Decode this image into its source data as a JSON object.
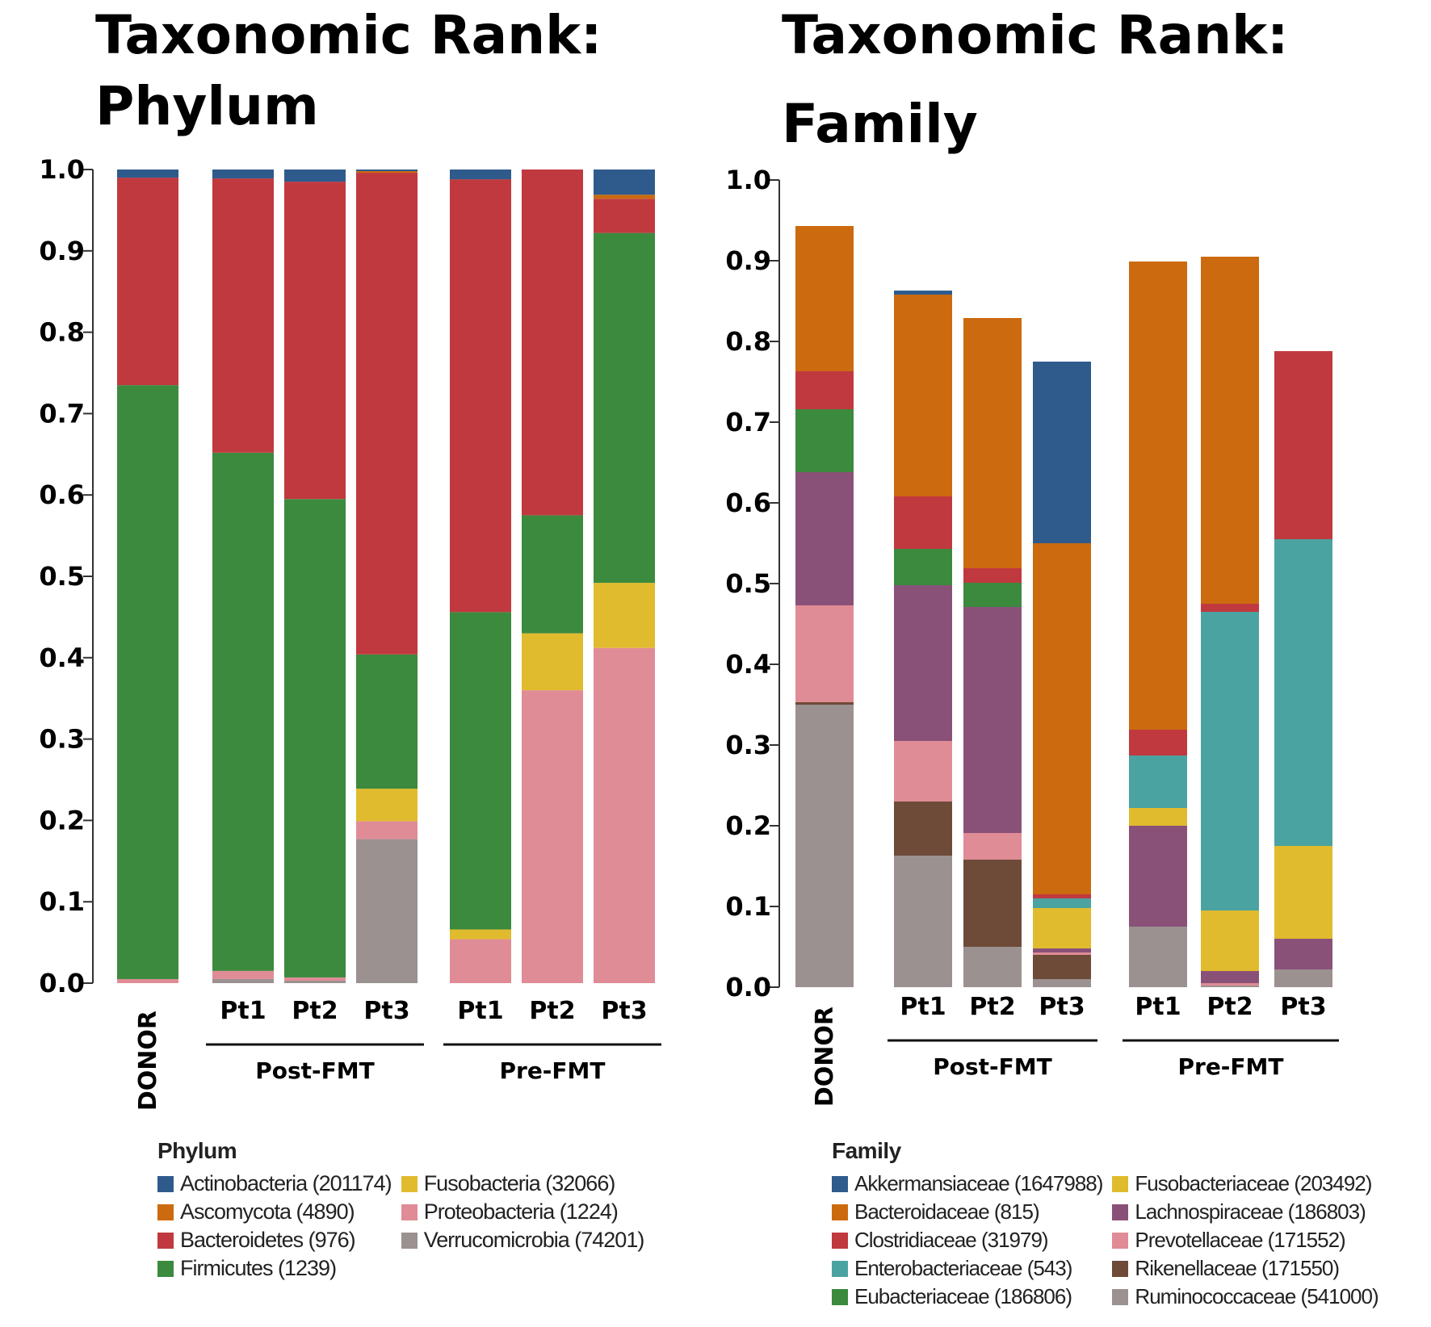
{
  "titles": {
    "left_line1": "Taxonomic Rank:",
    "left_line2": "Phylum",
    "right_line1": "Taxonomic Rank:",
    "right_line2": "Family"
  },
  "colors": {
    "Actinobacteria": "#2e5b8c",
    "Ascomycota": "#cc6a10",
    "Bacteroidetes": "#c0393f",
    "Firmicutes": "#3b8a3e",
    "Fusobacteria": "#e0bb2e",
    "Proteobacteria": "#e08c96",
    "Verrucomicrobia": "#9b9191",
    "Akkermansiaceae": "#2e5b8c",
    "Bacteroidaceae": "#cc6a10",
    "Clostridiaceae": "#c0393f",
    "Enterobacteriaceae": "#4ba3a1",
    "Eubacteriaceae": "#3b8a3e",
    "Fusobacteriaceae": "#e0bb2e",
    "Lachnospiraceae": "#8a5178",
    "Prevotellaceae": "#e08c96",
    "Rikenellaceae": "#6e4a38",
    "Ruminococcaceae": "#9b9191"
  },
  "chart_data": [
    {
      "type": "bar",
      "stacked": true,
      "ylim": [
        0,
        1.0
      ],
      "yticks": [
        "0.0",
        "0.1",
        "0.2",
        "0.3",
        "0.4",
        "0.5",
        "0.6",
        "0.7",
        "0.8",
        "0.9",
        "1.0"
      ],
      "categories": [
        "DONOR",
        "Pt1",
        "Pt2",
        "Pt3",
        "Pt1",
        "Pt2",
        "Pt3"
      ],
      "groups": [
        {
          "label": "Post-FMT",
          "members": [
            1,
            2,
            3
          ]
        },
        {
          "label": "Pre-FMT",
          "members": [
            4,
            5,
            6
          ]
        }
      ],
      "legend_title": "Phylum",
      "legend_columns": [
        [
          "Actinobacteria (201174)",
          "Ascomycota (4890)",
          "Bacteroidetes (976)",
          "Firmicutes (1239)"
        ],
        [
          "Fusobacteria (32066)",
          "Proteobacteria (1224)",
          "Verrucomicrobia (74201)"
        ]
      ],
      "series": [
        {
          "name": "Verrucomicrobia",
          "values": [
            0.0,
            0.005,
            0.003,
            0.177,
            0.0,
            0.0,
            0.0
          ]
        },
        {
          "name": "Proteobacteria",
          "values": [
            0.005,
            0.01,
            0.004,
            0.022,
            0.054,
            0.36,
            0.412
          ]
        },
        {
          "name": "Fusobacteria",
          "values": [
            0.0,
            0.0,
            0.0,
            0.04,
            0.012,
            0.07,
            0.08
          ]
        },
        {
          "name": "Firmicutes",
          "values": [
            0.73,
            0.637,
            0.588,
            0.165,
            0.39,
            0.145,
            0.43
          ]
        },
        {
          "name": "Bacteroidetes",
          "values": [
            0.255,
            0.337,
            0.39,
            0.592,
            0.532,
            0.425,
            0.042
          ]
        },
        {
          "name": "Ascomycota",
          "values": [
            0.0,
            0.0,
            0.0,
            0.002,
            0.0,
            0.0,
            0.005
          ]
        },
        {
          "name": "Actinobacteria",
          "values": [
            0.01,
            0.011,
            0.015,
            0.002,
            0.012,
            0.0,
            0.031
          ]
        }
      ]
    },
    {
      "type": "bar",
      "stacked": true,
      "ylim": [
        0,
        1.0
      ],
      "yticks": [
        "0.0",
        "0.1",
        "0.2",
        "0.3",
        "0.4",
        "0.5",
        "0.6",
        "0.7",
        "0.8",
        "0.9",
        "1.0"
      ],
      "categories": [
        "DONOR",
        "Pt1",
        "Pt2",
        "Pt3",
        "Pt1",
        "Pt2",
        "Pt3"
      ],
      "groups": [
        {
          "label": "Post-FMT",
          "members": [
            1,
            2,
            3
          ]
        },
        {
          "label": "Pre-FMT",
          "members": [
            4,
            5,
            6
          ]
        }
      ],
      "legend_title": "Family",
      "legend_columns": [
        [
          "Akkermansiaceae (1647988)",
          "Bacteroidaceae (815)",
          "Clostridiaceae (31979)",
          "Enterobacteriaceae (543)",
          "Eubacteriaceae (186806)"
        ],
        [
          "Fusobacteriaceae (203492)",
          "Lachnospiraceae (186803)",
          "Prevotellaceae (171552)",
          "Rikenellaceae (171550)",
          "Ruminococcaceae (541000)"
        ]
      ],
      "series": [
        {
          "name": "Ruminococcaceae",
          "values": [
            0.35,
            0.163,
            0.05,
            0.01,
            0.075,
            0.002,
            0.022
          ]
        },
        {
          "name": "Rikenellaceae",
          "values": [
            0.003,
            0.067,
            0.108,
            0.03,
            0.0,
            0.0,
            0.0
          ]
        },
        {
          "name": "Prevotellaceae",
          "values": [
            0.12,
            0.075,
            0.033,
            0.003,
            0.0,
            0.003,
            0.0
          ]
        },
        {
          "name": "Lachnospiraceae",
          "values": [
            0.165,
            0.193,
            0.28,
            0.005,
            0.125,
            0.015,
            0.038
          ]
        },
        {
          "name": "Fusobacteriaceae",
          "values": [
            0.0,
            0.0,
            0.0,
            0.05,
            0.022,
            0.075,
            0.115
          ]
        },
        {
          "name": "Enterobacteriaceae",
          "values": [
            0.0,
            0.0,
            0.0,
            0.012,
            0.065,
            0.37,
            0.38
          ]
        },
        {
          "name": "Eubacteriaceae",
          "values": [
            0.078,
            0.045,
            0.03,
            0.0,
            0.0,
            0.0,
            0.0
          ]
        },
        {
          "name": "Clostridiaceae",
          "values": [
            0.047,
            0.065,
            0.018,
            0.005,
            0.032,
            0.01,
            0.233
          ]
        },
        {
          "name": "Bacteroidaceae",
          "values": [
            0.18,
            0.25,
            0.31,
            0.435,
            0.58,
            0.43,
            0.0
          ]
        },
        {
          "name": "Akkermansiaceae",
          "values": [
            0.0,
            0.005,
            0.0,
            0.225,
            0.0,
            0.0,
            0.0
          ]
        }
      ]
    }
  ]
}
